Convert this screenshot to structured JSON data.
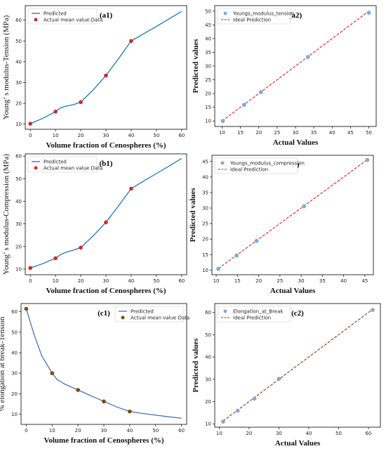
{
  "chart_data": [
    {
      "id": "a1",
      "type": "line",
      "tag": "(a1)",
      "xlabel": "Volume fraction of Cenospheres (%)",
      "ylabel": "Young’ s modulus-Tension (MPa)",
      "xlim": [
        -2,
        62
      ],
      "ylim": [
        7.5,
        67
      ],
      "xticks": [
        0,
        10,
        20,
        30,
        40,
        50,
        60
      ],
      "yticks": [
        10,
        20,
        30,
        40,
        50,
        60
      ],
      "legend": [
        "Predicted",
        "Actual mean value Data"
      ],
      "legend_position": "top-left",
      "line_color": "#1f77b4",
      "marker_color": "#d62728",
      "line": {
        "x": [
          0,
          5,
          10,
          12,
          14,
          17,
          20,
          25,
          30,
          35,
          40,
          45,
          50,
          55,
          60
        ],
        "y": [
          10.2,
          12.8,
          16.0,
          17.8,
          18.6,
          19.3,
          20.6,
          26.5,
          33.4,
          41.5,
          50.0,
          53.5,
          57.0,
          60.6,
          64.2
        ]
      },
      "points": {
        "x": [
          0,
          10,
          20,
          30,
          40
        ],
        "y": [
          10.2,
          16.0,
          20.6,
          33.4,
          50.0
        ]
      }
    },
    {
      "id": "a2",
      "type": "scatter",
      "tag": "(a2)",
      "xlabel": "Actual Values",
      "ylabel": "Predicted values",
      "xlim": [
        8,
        52
      ],
      "ylim": [
        8,
        52
      ],
      "xticks": [
        10,
        15,
        20,
        25,
        30,
        35,
        40,
        45,
        50
      ],
      "yticks": [
        10,
        15,
        20,
        25,
        30,
        35,
        40,
        45,
        50
      ],
      "legend": [
        "Youngs_modulus_tension",
        "Ideal Prediction"
      ],
      "legend_position": "top-left",
      "marker_color": "#7aaed6",
      "ideal_color": "#e0201b",
      "ideal": [
        10,
        50
      ],
      "points": {
        "x": [
          10.2,
          16.0,
          20.6,
          33.4,
          50.0
        ],
        "y": [
          10.0,
          15.9,
          20.5,
          33.3,
          49.4
        ]
      }
    },
    {
      "id": "b1",
      "type": "line",
      "tag": "(b1)",
      "xlabel": "Volume fraction of Cenospheres (%)",
      "ylabel": "Young’ s modulus-Compression (MPa)",
      "xlim": [
        -2,
        62
      ],
      "ylim": [
        7.5,
        61
      ],
      "xticks": [
        0,
        10,
        20,
        30,
        40,
        50,
        60
      ],
      "yticks": [
        10,
        20,
        30,
        40,
        50,
        60
      ],
      "legend": [
        "Predicted",
        "Actual mean value Data"
      ],
      "legend_position": "top-left",
      "line_color": "#1f77b4",
      "marker_color": "#d62728",
      "line": {
        "x": [
          0,
          5,
          10,
          12,
          14,
          17,
          20,
          25,
          30,
          35,
          40,
          45,
          50,
          55,
          60
        ],
        "y": [
          10.5,
          12.4,
          14.8,
          16.4,
          17.4,
          18.4,
          19.5,
          24.8,
          30.7,
          38.0,
          45.6,
          49.0,
          52.3,
          55.6,
          59.0
        ]
      },
      "points": {
        "x": [
          0,
          10,
          20,
          30,
          40
        ],
        "y": [
          10.5,
          14.8,
          19.5,
          30.7,
          45.6
        ]
      }
    },
    {
      "id": "b2",
      "type": "scatter",
      "tag": "(b2)",
      "xlabel": "Actual Values",
      "ylabel": "Predicted values",
      "xlim": [
        9,
        47
      ],
      "ylim": [
        8.5,
        47
      ],
      "xticks": [
        10,
        15,
        20,
        25,
        30,
        35,
        40,
        45
      ],
      "yticks": [
        10,
        15,
        20,
        25,
        30,
        35,
        40,
        45
      ],
      "legend": [
        "Youngs_modulus_compression",
        "Ideal Prediction"
      ],
      "legend_position": "top-left",
      "marker_color": "#7aaed6",
      "ideal_color": "#e0201b",
      "ideal": [
        10.5,
        45.6
      ],
      "points": {
        "x": [
          10.5,
          14.8,
          19.5,
          30.7,
          45.6
        ],
        "y": [
          10.4,
          14.7,
          19.4,
          30.6,
          45.5
        ]
      }
    },
    {
      "id": "c1",
      "type": "line",
      "tag": "(c1)",
      "xlabel": "Volume fraction of Cenospheres (%)",
      "ylabel": "% elongation at break-Tension",
      "xlim": [
        -2,
        62
      ],
      "ylim": [
        5,
        64
      ],
      "xticks": [
        0,
        10,
        20,
        30,
        40,
        50,
        60
      ],
      "yticks": [
        10,
        20,
        30,
        40,
        50,
        60
      ],
      "legend": [
        "Predicted",
        "Actual mean value Data"
      ],
      "legend_position": "top-right",
      "line_color": "#4a72b0",
      "marker_color": "#7a4a10",
      "line": {
        "x": [
          0,
          3,
          6,
          10,
          12,
          15,
          20,
          25,
          30,
          35,
          40,
          45,
          50,
          55,
          60
        ],
        "y": [
          61.4,
          49.0,
          38.5,
          30.0,
          26.8,
          24.6,
          21.8,
          19.0,
          16.2,
          13.5,
          11.3,
          10.3,
          9.5,
          8.7,
          8.0
        ]
      },
      "points": {
        "x": [
          0,
          10,
          20,
          30,
          40
        ],
        "y": [
          61.4,
          30.0,
          21.8,
          16.2,
          11.3
        ]
      }
    },
    {
      "id": "c2",
      "type": "scatter",
      "tag": "(c2)",
      "xlabel": "Actual Values",
      "ylabel": "Predicted values",
      "xlim": [
        8.5,
        64
      ],
      "ylim": [
        8.5,
        64
      ],
      "xticks": [
        10,
        20,
        30,
        40,
        50,
        60
      ],
      "yticks": [
        10,
        20,
        30,
        40,
        50,
        60
      ],
      "legend": [
        "Elongation_at_Break",
        "Ideal Prediction"
      ],
      "legend_position": "top-left",
      "marker_color": "#8aa6d6",
      "ideal_color": "#8b3a10",
      "ideal": [
        11.3,
        61.4
      ],
      "points": {
        "x": [
          11.3,
          16.2,
          21.8,
          30.0,
          61.4
        ],
        "y": [
          11.0,
          15.9,
          21.3,
          30.2,
          61.1
        ]
      }
    }
  ]
}
